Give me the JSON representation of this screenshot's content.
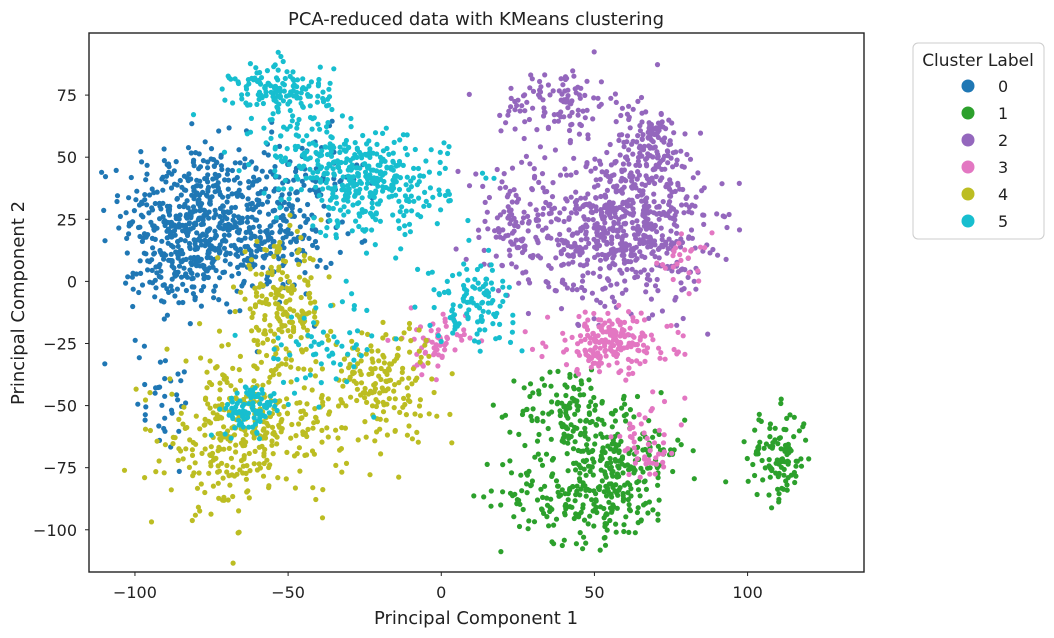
{
  "chart_data": {
    "type": "scatter",
    "title": "PCA-reduced data with KMeans clustering",
    "xlabel": "Principal Component 1",
    "ylabel": "Principal Component 2",
    "xlim": [
      -115,
      138
    ],
    "ylim": [
      -117,
      100
    ],
    "xticks": [
      -100,
      -50,
      0,
      50,
      100
    ],
    "xtick_labels": [
      "−100",
      "−50",
      "0",
      "50",
      "100"
    ],
    "yticks": [
      -100,
      -75,
      -50,
      -25,
      0,
      25,
      50,
      75
    ],
    "ytick_labels": [
      "−100",
      "−75",
      "−50",
      "−25",
      "0",
      "25",
      "50",
      "75"
    ],
    "grid": false,
    "legend": {
      "title": "Cluster Label",
      "placement": "outside-right"
    },
    "series": [
      {
        "name": "0",
        "color": "#1f77b4",
        "clusters": [
          {
            "cx": -80,
            "cy": 28,
            "sx": 12,
            "sy": 14,
            "n": 420
          },
          {
            "cx": -82,
            "cy": 5,
            "sx": 9,
            "sy": 8,
            "n": 150
          },
          {
            "cx": -55,
            "cy": 18,
            "sx": 10,
            "sy": 12,
            "n": 180
          },
          {
            "cx": -45,
            "cy": 40,
            "sx": 10,
            "sy": 10,
            "n": 70
          },
          {
            "cx": -92,
            "cy": -45,
            "sx": 7,
            "sy": 12,
            "n": 35
          }
        ]
      },
      {
        "name": "1",
        "color": "#2ca02c",
        "clusters": [
          {
            "cx": 42,
            "cy": -52,
            "sx": 8,
            "sy": 9,
            "n": 130
          },
          {
            "cx": 48,
            "cy": -85,
            "sx": 14,
            "sy": 10,
            "n": 260
          },
          {
            "cx": 62,
            "cy": -68,
            "sx": 9,
            "sy": 9,
            "n": 110
          },
          {
            "cx": 110,
            "cy": -70,
            "sx": 5,
            "sy": 9,
            "n": 110
          }
        ]
      },
      {
        "name": "2",
        "color": "#9467bd",
        "clusters": [
          {
            "cx": 60,
            "cy": 22,
            "sx": 13,
            "sy": 15,
            "n": 620
          },
          {
            "cx": 68,
            "cy": 55,
            "sx": 6,
            "sy": 8,
            "n": 130
          },
          {
            "cx": 38,
            "cy": 72,
            "sx": 9,
            "sy": 7,
            "n": 110
          },
          {
            "cx": 25,
            "cy": 22,
            "sx": 9,
            "sy": 14,
            "n": 130
          }
        ]
      },
      {
        "name": "3",
        "color": "#e377c2",
        "clusters": [
          {
            "cx": -2,
            "cy": -25,
            "sx": 5,
            "sy": 6,
            "n": 60
          },
          {
            "cx": 55,
            "cy": -25,
            "sx": 10,
            "sy": 6,
            "n": 200
          },
          {
            "cx": 68,
            "cy": -65,
            "sx": 6,
            "sy": 8,
            "n": 50
          },
          {
            "cx": 78,
            "cy": 8,
            "sx": 5,
            "sy": 6,
            "n": 25
          }
        ]
      },
      {
        "name": "4",
        "color": "#bcbd22",
        "clusters": [
          {
            "cx": -52,
            "cy": -12,
            "sx": 7,
            "sy": 13,
            "n": 200
          },
          {
            "cx": -70,
            "cy": -62,
            "sx": 10,
            "sy": 15,
            "n": 260
          },
          {
            "cx": -48,
            "cy": -60,
            "sx": 9,
            "sy": 10,
            "n": 90
          },
          {
            "cx": -20,
            "cy": -40,
            "sx": 9,
            "sy": 12,
            "n": 180
          }
        ]
      },
      {
        "name": "5",
        "color": "#17becf",
        "clusters": [
          {
            "cx": -52,
            "cy": 76,
            "sx": 8,
            "sy": 6,
            "n": 150
          },
          {
            "cx": -22,
            "cy": 38,
            "sx": 12,
            "sy": 10,
            "n": 300
          },
          {
            "cx": -40,
            "cy": 50,
            "sx": 10,
            "sy": 8,
            "n": 120
          },
          {
            "cx": -62,
            "cy": -52,
            "sx": 5,
            "sy": 5,
            "n": 90
          },
          {
            "cx": 10,
            "cy": -8,
            "sx": 7,
            "sy": 8,
            "n": 110
          },
          {
            "cx": -38,
            "cy": -25,
            "sx": 10,
            "sy": 10,
            "n": 60
          }
        ]
      }
    ]
  }
}
